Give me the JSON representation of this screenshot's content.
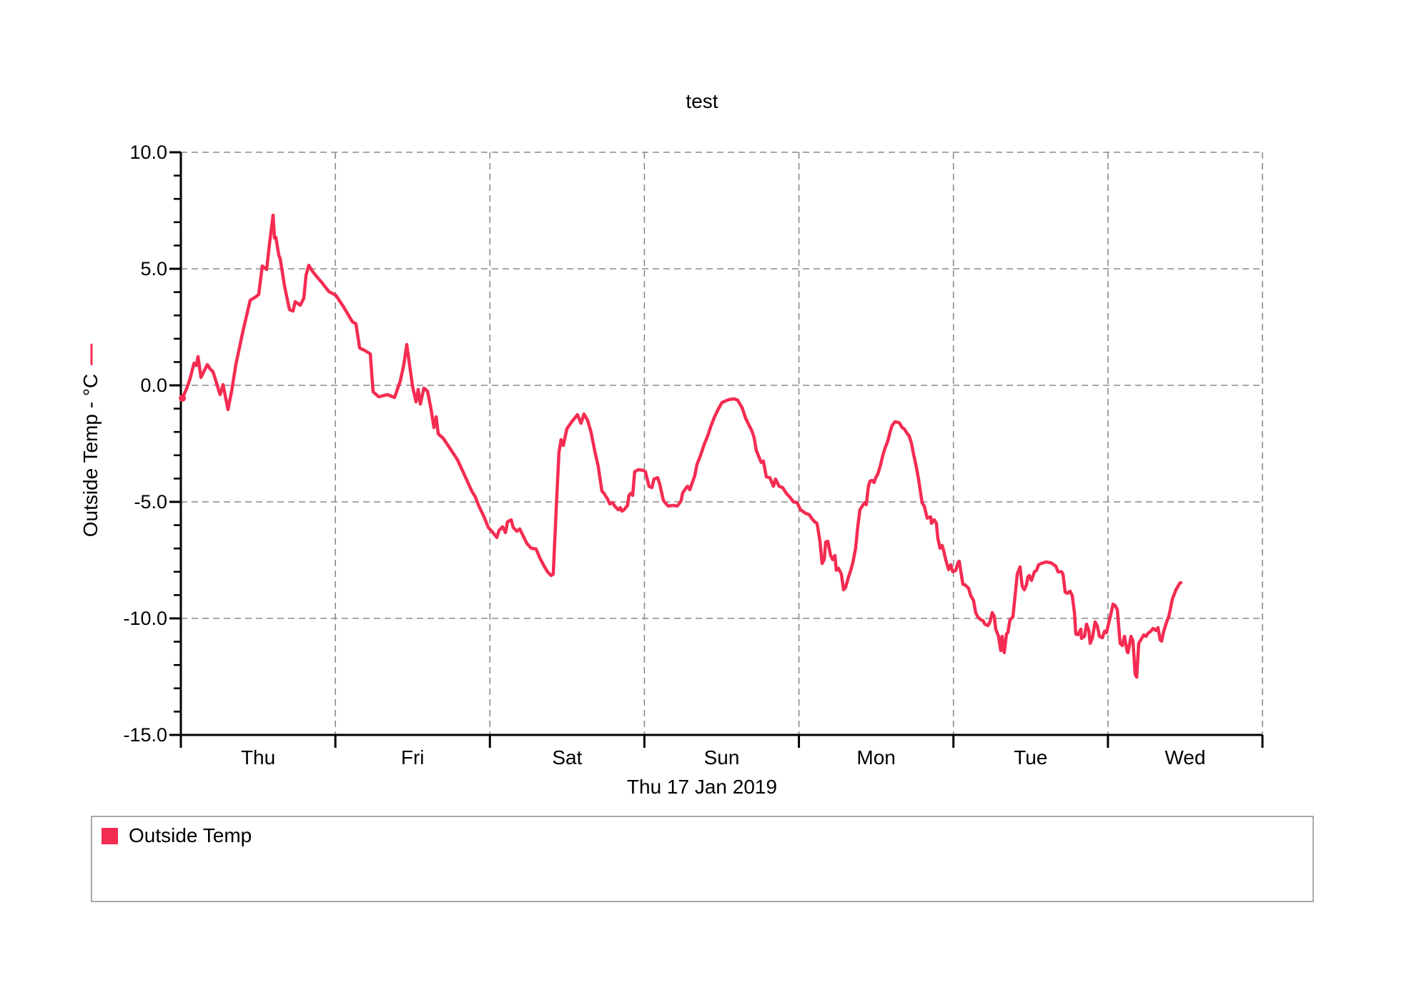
{
  "chart": {
    "title": "test",
    "xlabel": "Thu 17 Jan 2019",
    "ylabel": "Outside Temp - °C",
    "ylabel_dash": "—",
    "legend": {
      "label": "Outside Temp"
    }
  },
  "colors": {
    "line": "#F42C52",
    "grid": "#8a8a8a",
    "axis": "#000000",
    "legend_border": "#a8a8a8"
  },
  "chart_data": {
    "type": "line",
    "title": "test",
    "xlabel": "Thu 17 Jan 2019",
    "ylabel": "Outside Temp - °C",
    "series_name": "Outside Temp",
    "line_color": "#F42C52",
    "grid": true,
    "legend_position": "bottom",
    "ylim": [
      -15,
      10
    ],
    "x_range_days": [
      0,
      7
    ],
    "y_ticks": [
      {
        "v": 10,
        "label": "10.0"
      },
      {
        "v": 5,
        "label": "5.0"
      },
      {
        "v": 0,
        "label": "0.0"
      },
      {
        "v": -5,
        "label": "-5.0"
      },
      {
        "v": -10,
        "label": "-10.0"
      },
      {
        "v": -15,
        "label": "-15.0"
      }
    ],
    "grid_y_values": [
      10,
      5,
      0,
      -5,
      -10
    ],
    "x_day_labels": [
      "Thu",
      "Fri",
      "Sat",
      "Sun",
      "Mon",
      "Tue",
      "Wed"
    ],
    "points": [
      [
        0.01,
        -0.55
      ],
      [
        0.04,
        -0.1
      ],
      [
        0.06,
        0.3
      ],
      [
        0.085,
        0.95
      ],
      [
        0.1,
        0.85
      ],
      [
        0.111,
        1.23
      ],
      [
        0.13,
        0.34
      ],
      [
        0.171,
        0.89
      ],
      [
        0.19,
        0.7
      ],
      [
        0.208,
        0.58
      ],
      [
        0.254,
        -0.4
      ],
      [
        0.273,
        0.03
      ],
      [
        0.305,
        -1.04
      ],
      [
        0.33,
        -0.2
      ],
      [
        0.356,
        0.89
      ],
      [
        0.403,
        2.36
      ],
      [
        0.449,
        3.65
      ],
      [
        0.486,
        3.8
      ],
      [
        0.504,
        3.9
      ],
      [
        0.527,
        5.12
      ],
      [
        0.555,
        4.97
      ],
      [
        0.574,
        6.1
      ],
      [
        0.597,
        7.3
      ],
      [
        0.606,
        6.32
      ],
      [
        0.615,
        6.35
      ],
      [
        0.634,
        5.58
      ],
      [
        0.643,
        5.43
      ],
      [
        0.671,
        4.26
      ],
      [
        0.703,
        3.25
      ],
      [
        0.726,
        3.19
      ],
      [
        0.74,
        3.59
      ],
      [
        0.773,
        3.44
      ],
      [
        0.796,
        3.74
      ],
      [
        0.81,
        4.72
      ],
      [
        0.828,
        5.15
      ],
      [
        0.847,
        4.94
      ],
      [
        0.865,
        4.78
      ],
      [
        0.911,
        4.42
      ],
      [
        0.958,
        4.02
      ],
      [
        1.004,
        3.86
      ],
      [
        1.05,
        3.4
      ],
      [
        1.11,
        2.73
      ],
      [
        1.133,
        2.64
      ],
      [
        1.157,
        1.6
      ],
      [
        1.189,
        1.5
      ],
      [
        1.226,
        1.35
      ],
      [
        1.244,
        -0.28
      ],
      [
        1.281,
        -0.49
      ],
      [
        1.337,
        -0.4
      ],
      [
        1.383,
        -0.52
      ],
      [
        1.42,
        0.18
      ],
      [
        1.443,
        0.89
      ],
      [
        1.462,
        1.75
      ],
      [
        1.48,
        0.89
      ],
      [
        1.499,
        -0.03
      ],
      [
        1.522,
        -0.71
      ],
      [
        1.536,
        -0.18
      ],
      [
        1.55,
        -0.8
      ],
      [
        1.573,
        -0.12
      ],
      [
        1.596,
        -0.25
      ],
      [
        1.619,
        -1.01
      ],
      [
        1.638,
        -1.81
      ],
      [
        1.652,
        -1.35
      ],
      [
        1.666,
        -2.09
      ],
      [
        1.698,
        -2.27
      ],
      [
        1.744,
        -2.73
      ],
      [
        1.79,
        -3.19
      ],
      [
        1.837,
        -3.87
      ],
      [
        1.883,
        -4.54
      ],
      [
        1.906,
        -4.79
      ],
      [
        1.929,
        -5.18
      ],
      [
        1.962,
        -5.64
      ],
      [
        1.99,
        -6.1
      ],
      [
        2.008,
        -6.23
      ],
      [
        2.031,
        -6.41
      ],
      [
        2.045,
        -6.53
      ],
      [
        2.059,
        -6.23
      ],
      [
        2.082,
        -6.07
      ],
      [
        2.101,
        -6.32
      ],
      [
        2.114,
        -5.86
      ],
      [
        2.138,
        -5.77
      ],
      [
        2.151,
        -6.1
      ],
      [
        2.175,
        -6.26
      ],
      [
        2.193,
        -6.16
      ],
      [
        2.216,
        -6.47
      ],
      [
        2.239,
        -6.78
      ],
      [
        2.267,
        -6.99
      ],
      [
        2.299,
        -7.02
      ],
      [
        2.322,
        -7.39
      ],
      [
        2.346,
        -7.7
      ],
      [
        2.373,
        -8.0
      ],
      [
        2.396,
        -8.16
      ],
      [
        2.41,
        -8.1
      ],
      [
        2.429,
        -5.34
      ],
      [
        2.447,
        -2.88
      ],
      [
        2.461,
        -2.33
      ],
      [
        2.475,
        -2.58
      ],
      [
        2.498,
        -1.87
      ],
      [
        2.53,
        -1.56
      ],
      [
        2.567,
        -1.26
      ],
      [
        2.59,
        -1.63
      ],
      [
        2.609,
        -1.23
      ],
      [
        2.632,
        -1.5
      ],
      [
        2.655,
        -2.02
      ],
      [
        2.678,
        -2.79
      ],
      [
        2.701,
        -3.47
      ],
      [
        2.725,
        -4.54
      ],
      [
        2.738,
        -4.63
      ],
      [
        2.762,
        -4.88
      ],
      [
        2.776,
        -5.09
      ],
      [
        2.794,
        -5.03
      ],
      [
        2.808,
        -5.18
      ],
      [
        2.831,
        -5.34
      ],
      [
        2.845,
        -5.25
      ],
      [
        2.854,
        -5.4
      ],
      [
        2.868,
        -5.34
      ],
      [
        2.891,
        -5.15
      ],
      [
        2.9,
        -4.72
      ],
      [
        2.914,
        -4.63
      ],
      [
        2.924,
        -4.72
      ],
      [
        2.937,
        -3.71
      ],
      [
        2.961,
        -3.62
      ],
      [
        2.993,
        -3.65
      ],
      [
        3.007,
        -3.71
      ],
      [
        3.03,
        -4.33
      ],
      [
        3.049,
        -4.39
      ],
      [
        3.062,
        -4.02
      ],
      [
        3.086,
        -3.96
      ],
      [
        3.099,
        -4.23
      ],
      [
        3.123,
        -4.94
      ],
      [
        3.141,
        -5.09
      ],
      [
        3.155,
        -5.18
      ],
      [
        3.187,
        -5.15
      ],
      [
        3.211,
        -5.18
      ],
      [
        3.224,
        -5.09
      ],
      [
        3.238,
        -4.94
      ],
      [
        3.247,
        -4.63
      ],
      [
        3.271,
        -4.39
      ],
      [
        3.28,
        -4.33
      ],
      [
        3.294,
        -4.48
      ],
      [
        3.307,
        -4.23
      ],
      [
        3.326,
        -3.87
      ],
      [
        3.34,
        -3.4
      ],
      [
        3.363,
        -3.01
      ],
      [
        3.386,
        -2.55
      ],
      [
        3.409,
        -2.18
      ],
      [
        3.432,
        -1.72
      ],
      [
        3.456,
        -1.32
      ],
      [
        3.479,
        -1.01
      ],
      [
        3.502,
        -0.74
      ],
      [
        3.525,
        -0.67
      ],
      [
        3.548,
        -0.61
      ],
      [
        3.581,
        -0.58
      ],
      [
        3.604,
        -0.64
      ],
      [
        3.618,
        -0.8
      ],
      [
        3.632,
        -0.95
      ],
      [
        3.655,
        -1.41
      ],
      [
        3.673,
        -1.66
      ],
      [
        3.696,
        -1.96
      ],
      [
        3.71,
        -2.24
      ],
      [
        3.724,
        -2.79
      ],
      [
        3.743,
        -3.1
      ],
      [
        3.756,
        -3.31
      ],
      [
        3.77,
        -3.25
      ],
      [
        3.789,
        -3.93
      ],
      [
        3.812,
        -3.96
      ],
      [
        3.835,
        -4.33
      ],
      [
        3.849,
        -4.02
      ],
      [
        3.872,
        -4.33
      ],
      [
        3.895,
        -4.39
      ],
      [
        3.918,
        -4.63
      ],
      [
        3.941,
        -4.79
      ],
      [
        3.964,
        -5.0
      ],
      [
        3.988,
        -5.03
      ],
      [
        4.011,
        -5.34
      ],
      [
        4.043,
        -5.49
      ],
      [
        4.066,
        -5.55
      ],
      [
        4.09,
        -5.77
      ],
      [
        4.103,
        -5.86
      ],
      [
        4.117,
        -5.92
      ],
      [
        4.136,
        -6.69
      ],
      [
        4.15,
        -7.64
      ],
      [
        4.164,
        -7.48
      ],
      [
        4.173,
        -6.72
      ],
      [
        4.187,
        -6.69
      ],
      [
        4.205,
        -7.3
      ],
      [
        4.219,
        -7.48
      ],
      [
        4.233,
        -7.3
      ],
      [
        4.242,
        -7.94
      ],
      [
        4.256,
        -7.85
      ],
      [
        4.275,
        -8.1
      ],
      [
        4.289,
        -8.77
      ],
      [
        4.302,
        -8.68
      ],
      [
        4.321,
        -8.22
      ],
      [
        4.335,
        -7.94
      ],
      [
        4.349,
        -7.61
      ],
      [
        4.367,
        -6.99
      ],
      [
        4.381,
        -6.07
      ],
      [
        4.395,
        -5.34
      ],
      [
        4.413,
        -5.15
      ],
      [
        4.427,
        -5.03
      ],
      [
        4.436,
        -5.12
      ],
      [
        4.45,
        -4.33
      ],
      [
        4.46,
        -4.11
      ],
      [
        4.473,
        -4.08
      ],
      [
        4.487,
        -4.17
      ],
      [
        4.497,
        -3.96
      ],
      [
        4.511,
        -3.8
      ],
      [
        4.529,
        -3.4
      ],
      [
        4.543,
        -3.01
      ],
      [
        4.557,
        -2.7
      ],
      [
        4.575,
        -2.39
      ],
      [
        4.589,
        -2.02
      ],
      [
        4.603,
        -1.72
      ],
      [
        4.622,
        -1.56
      ],
      [
        4.649,
        -1.6
      ],
      [
        4.668,
        -1.81
      ],
      [
        4.682,
        -1.87
      ],
      [
        4.696,
        -2.02
      ],
      [
        4.714,
        -2.18
      ],
      [
        4.728,
        -2.48
      ],
      [
        4.742,
        -2.94
      ],
      [
        4.76,
        -3.5
      ],
      [
        4.774,
        -4.02
      ],
      [
        4.788,
        -4.63
      ],
      [
        4.797,
        -5.03
      ],
      [
        4.811,
        -5.18
      ],
      [
        4.83,
        -5.7
      ],
      [
        4.853,
        -5.64
      ],
      [
        4.858,
        -5.92
      ],
      [
        4.876,
        -5.77
      ],
      [
        4.89,
        -5.92
      ],
      [
        4.899,
        -6.56
      ],
      [
        4.913,
        -6.99
      ],
      [
        4.927,
        -6.87
      ],
      [
        4.936,
        -7.08
      ],
      [
        4.95,
        -7.48
      ],
      [
        4.969,
        -7.91
      ],
      [
        4.983,
        -7.7
      ],
      [
        4.996,
        -8.0
      ],
      [
        5.015,
        -7.94
      ],
      [
        5.029,
        -7.61
      ],
      [
        5.038,
        -7.55
      ],
      [
        5.061,
        -8.53
      ],
      [
        5.075,
        -8.56
      ],
      [
        5.098,
        -8.71
      ],
      [
        5.112,
        -9.02
      ],
      [
        5.13,
        -9.23
      ],
      [
        5.144,
        -9.75
      ],
      [
        5.158,
        -9.94
      ],
      [
        5.177,
        -10.06
      ],
      [
        5.19,
        -10.09
      ],
      [
        5.204,
        -10.25
      ],
      [
        5.223,
        -10.31
      ],
      [
        5.237,
        -10.15
      ],
      [
        5.251,
        -9.75
      ],
      [
        5.264,
        -9.91
      ],
      [
        5.274,
        -10.46
      ],
      [
        5.292,
        -10.77
      ],
      [
        5.306,
        -11.38
      ],
      [
        5.315,
        -10.77
      ],
      [
        5.329,
        -11.47
      ],
      [
        5.343,
        -10.67
      ],
      [
        5.352,
        -10.61
      ],
      [
        5.366,
        -10.06
      ],
      [
        5.385,
        -9.94
      ],
      [
        5.399,
        -9.02
      ],
      [
        5.413,
        -8.1
      ],
      [
        5.431,
        -7.79
      ],
      [
        5.445,
        -8.62
      ],
      [
        5.459,
        -8.77
      ],
      [
        5.473,
        -8.56
      ],
      [
        5.482,
        -8.22
      ],
      [
        5.491,
        -8.16
      ],
      [
        5.505,
        -8.37
      ],
      [
        5.524,
        -8.0
      ],
      [
        5.538,
        -7.94
      ],
      [
        5.551,
        -7.7
      ],
      [
        5.57,
        -7.64
      ],
      [
        5.598,
        -7.58
      ],
      [
        5.63,
        -7.61
      ],
      [
        5.663,
        -7.76
      ],
      [
        5.677,
        -8.0
      ],
      [
        5.7,
        -8.0
      ],
      [
        5.709,
        -8.1
      ],
      [
        5.723,
        -8.87
      ],
      [
        5.737,
        -8.93
      ],
      [
        5.755,
        -8.83
      ],
      [
        5.769,
        -9.02
      ],
      [
        5.783,
        -9.75
      ],
      [
        5.792,
        -10.67
      ],
      [
        5.806,
        -10.7
      ],
      [
        5.825,
        -10.46
      ],
      [
        5.829,
        -10.86
      ],
      [
        5.848,
        -10.77
      ],
      [
        5.862,
        -10.25
      ],
      [
        5.876,
        -10.52
      ],
      [
        5.885,
        -11.07
      ],
      [
        5.899,
        -10.86
      ],
      [
        5.917,
        -10.15
      ],
      [
        5.931,
        -10.31
      ],
      [
        5.945,
        -10.77
      ],
      [
        5.964,
        -10.83
      ],
      [
        5.978,
        -10.55
      ],
      [
        5.991,
        -10.61
      ],
      [
        6.01,
        -10.06
      ],
      [
        6.015,
        -9.94
      ],
      [
        6.033,
        -9.39
      ],
      [
        6.047,
        -9.45
      ],
      [
        6.061,
        -9.63
      ],
      [
        6.079,
        -11.07
      ],
      [
        6.093,
        -11.17
      ],
      [
        6.107,
        -10.77
      ],
      [
        6.125,
        -11.44
      ],
      [
        6.13,
        -11.47
      ],
      [
        6.149,
        -10.77
      ],
      [
        6.162,
        -10.98
      ],
      [
        6.176,
        -12.39
      ],
      [
        6.186,
        -12.52
      ],
      [
        6.199,
        -11.07
      ],
      [
        6.218,
        -10.86
      ],
      [
        6.232,
        -10.71
      ],
      [
        6.246,
        -10.77
      ],
      [
        6.264,
        -10.61
      ],
      [
        6.278,
        -10.55
      ],
      [
        6.292,
        -10.43
      ],
      [
        6.31,
        -10.52
      ],
      [
        6.324,
        -10.4
      ],
      [
        6.338,
        -10.92
      ],
      [
        6.347,
        -10.98
      ],
      [
        6.361,
        -10.55
      ],
      [
        6.38,
        -10.15
      ],
      [
        6.394,
        -9.91
      ],
      [
        6.403,
        -9.63
      ],
      [
        6.417,
        -9.17
      ],
      [
        6.426,
        -9.02
      ],
      [
        6.44,
        -8.77
      ],
      [
        6.449,
        -8.68
      ],
      [
        6.463,
        -8.5
      ],
      [
        6.472,
        -8.47
      ]
    ]
  }
}
